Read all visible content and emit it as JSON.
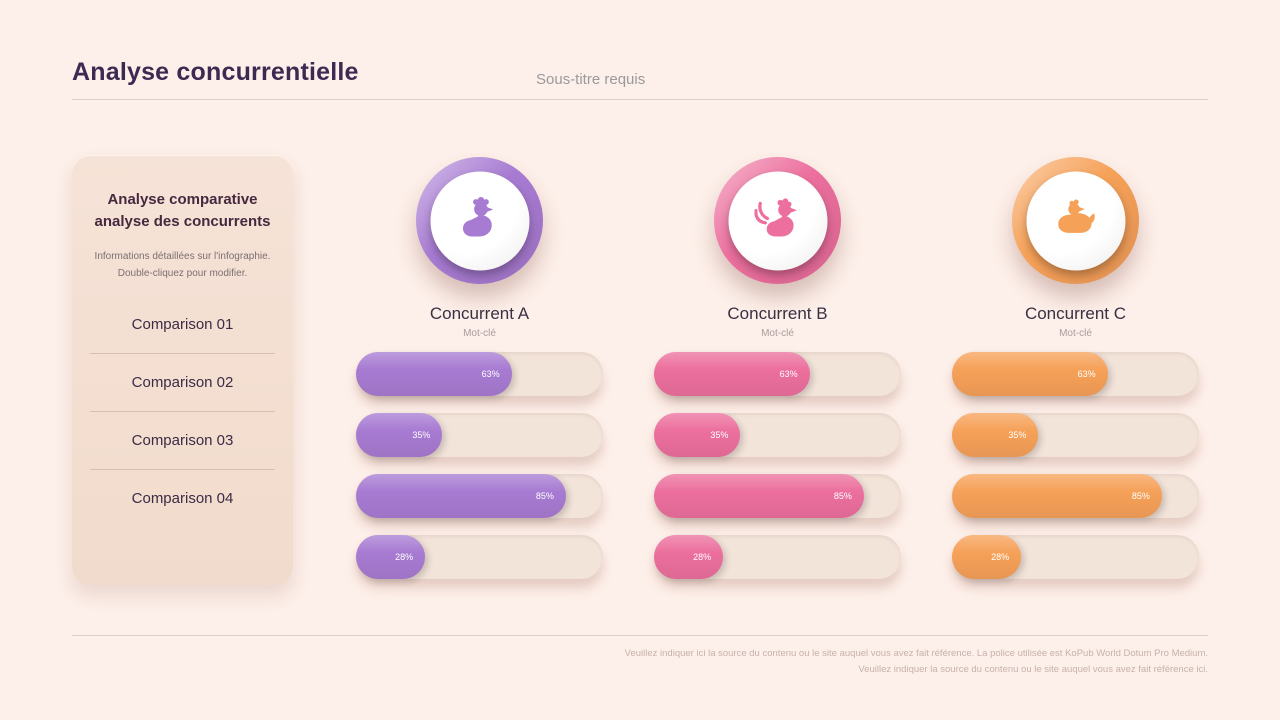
{
  "page": {
    "title": "Analyse concurrentielle",
    "subtitle": "Sous-titre requis",
    "background_color": "#fdefe9"
  },
  "sidebar": {
    "heading": "Analyse comparative analyse des concurrents",
    "description": "Informations détaillées sur l'infographie. Double-cliquez pour modifier.",
    "items": [
      {
        "label": "Comparison 01"
      },
      {
        "label": "Comparison 02"
      },
      {
        "label": "Comparison 03"
      },
      {
        "label": "Comparison 04"
      }
    ]
  },
  "competitors": [
    {
      "name": "Concurrent A",
      "keyword": "Mot-clé",
      "color": "#a77bd2",
      "icon": "rooster-icon",
      "bars": [
        {
          "value": 63,
          "label": "63%"
        },
        {
          "value": 35,
          "label": "35%"
        },
        {
          "value": 85,
          "label": "85%"
        },
        {
          "value": 28,
          "label": "28%"
        }
      ]
    },
    {
      "name": "Concurrent B",
      "keyword": "Mot-clé",
      "color": "#ec6f9d",
      "icon": "rooster-tail-icon",
      "bars": [
        {
          "value": 63,
          "label": "63%"
        },
        {
          "value": 35,
          "label": "35%"
        },
        {
          "value": 85,
          "label": "85%"
        },
        {
          "value": 28,
          "label": "28%"
        }
      ]
    },
    {
      "name": "Concurrent C",
      "keyword": "Mot-clé",
      "color": "#f6a158",
      "icon": "hen-icon",
      "bars": [
        {
          "value": 63,
          "label": "63%"
        },
        {
          "value": 35,
          "label": "35%"
        },
        {
          "value": 85,
          "label": "85%"
        },
        {
          "value": 28,
          "label": "28%"
        }
      ]
    }
  ],
  "chart_data": {
    "type": "bar",
    "title": "Analyse concurrentielle",
    "categories": [
      "Comparison 01",
      "Comparison 02",
      "Comparison 03",
      "Comparison 04"
    ],
    "series": [
      {
        "name": "Concurrent A",
        "values": [
          63,
          35,
          85,
          28
        ]
      },
      {
        "name": "Concurrent B",
        "values": [
          63,
          35,
          85,
          28
        ]
      },
      {
        "name": "Concurrent C",
        "values": [
          63,
          35,
          85,
          28
        ]
      }
    ],
    "unit": "%",
    "xlim": [
      0,
      100
    ],
    "legend_position": "column-headers",
    "grid": false
  },
  "footer": {
    "line1": "Veuillez indiquer ici la source du contenu ou le site auquel vous avez fait référence. La police utilisée est KoPub World Dotum Pro Medium.",
    "line2": "Veuillez indiquer la source du contenu ou le site auquel vous avez fait référence ici."
  }
}
